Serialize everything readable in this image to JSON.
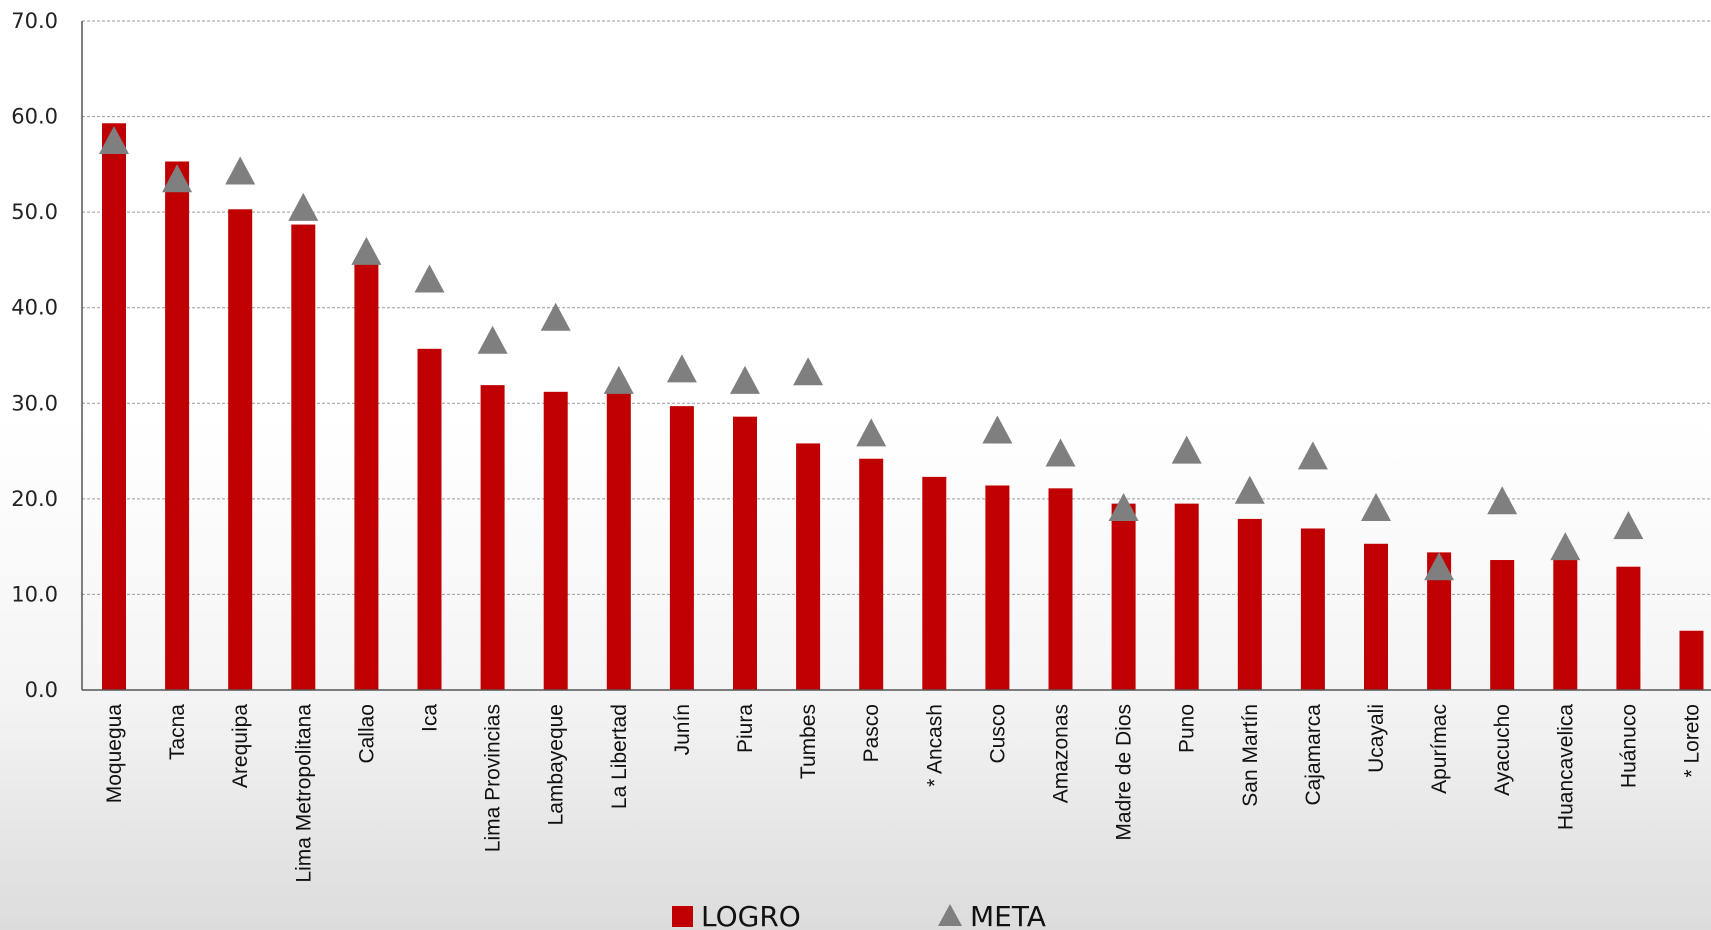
{
  "chart_data": {
    "type": "bar",
    "title": "",
    "xlabel": "",
    "ylabel": "",
    "ylim": [
      0,
      70
    ],
    "yticks": [
      "0.0",
      "10.0",
      "20.0",
      "30.0",
      "40.0",
      "50.0",
      "60.0",
      "70.0"
    ],
    "grid": true,
    "legend_placement": "bottom-center",
    "categories": [
      "Moquegua",
      "Tacna",
      "Arequipa",
      "Lima Metropolitana",
      "Callao",
      "Ica",
      "Lima Provincias",
      "Lambayeque",
      "La Libertad",
      "Junín",
      "Piura",
      "Tumbes",
      "Pasco",
      "* Ancash",
      "Cusco",
      "Amazonas",
      "Madre de Dios",
      "Puno",
      "San Martín",
      "Cajamarca",
      "Ucayali",
      "Apurímac",
      "Ayacucho",
      "Huancavelica",
      "Huánuco",
      "* Loreto"
    ],
    "series": [
      {
        "name": "LOGRO",
        "kind": "bar",
        "color": "#c00000",
        "values": [
          59.3,
          55.3,
          50.3,
          48.7,
          44.7,
          35.7,
          31.9,
          31.2,
          31.3,
          29.7,
          28.6,
          25.8,
          24.2,
          22.3,
          21.4,
          21.1,
          19.5,
          19.5,
          17.9,
          16.9,
          15.3,
          14.4,
          13.6,
          13.6,
          12.9,
          6.2
        ]
      },
      {
        "name": "META",
        "kind": "marker-triangle",
        "color": "#7f7f7f",
        "values": [
          57.2,
          53.2,
          54.0,
          50.2,
          45.6,
          42.7,
          36.3,
          38.7,
          32.1,
          33.3,
          32.1,
          33.0,
          26.6,
          null,
          26.9,
          24.5,
          18.8,
          24.8,
          20.6,
          24.2,
          18.8,
          12.6,
          19.5,
          14.7,
          16.9,
          null
        ]
      }
    ]
  }
}
